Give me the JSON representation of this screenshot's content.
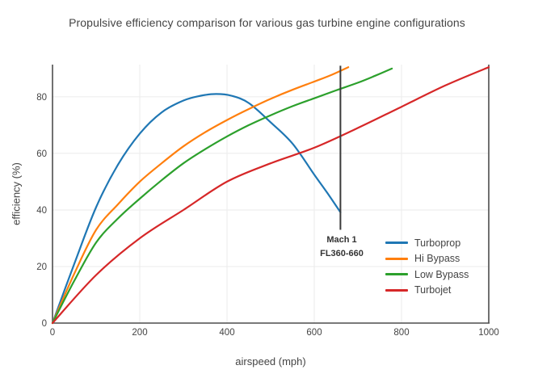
{
  "chart_data": {
    "type": "line",
    "title": "Propulsive efficiency comparison for various gas turbine engine configurations",
    "xlabel": "airspeed (mph)",
    "ylabel": "efficiency (%)",
    "xlim": [
      0,
      1000
    ],
    "ylim": [
      0,
      91.4
    ],
    "x_ticks": [
      0,
      200,
      400,
      600,
      800,
      1000
    ],
    "y_ticks": [
      0,
      20,
      40,
      60,
      80
    ],
    "grid": true,
    "legend_position": "inside-right",
    "style": {
      "grid_color": "#ebebeb",
      "axis_color": "#4d4d4d",
      "text_color": "#444444",
      "annotation_line_color": "#3a3a3a",
      "background": "#ffffff"
    },
    "series": [
      {
        "name": "Turboprop",
        "color": "#1f77b4",
        "x": [
          0,
          50,
          100,
          150,
          200,
          250,
          300,
          340,
          375,
          410,
          450,
          500,
          550,
          600,
          630,
          660
        ],
        "y": [
          0,
          21,
          41,
          56,
          67,
          74.5,
          78.7,
          80.4,
          81,
          80.4,
          77.8,
          71,
          63.5,
          52.5,
          46,
          39.2
        ]
      },
      {
        "name": "Hi Bypass",
        "color": "#ff7f0e",
        "x": [
          0,
          50,
          100,
          150,
          200,
          250,
          300,
          350,
          400,
          450,
          500,
          550,
          600,
          640,
          678
        ],
        "y": [
          0,
          17.5,
          33,
          42,
          50,
          56.5,
          62.5,
          67.5,
          71.8,
          75.7,
          79.3,
          82.5,
          85.4,
          87.8,
          90.5
        ]
      },
      {
        "name": "Low Bypass",
        "color": "#2ca02c",
        "x": [
          0,
          50,
          100,
          150,
          200,
          250,
          300,
          350,
          400,
          450,
          500,
          550,
          600,
          650,
          700,
          740,
          778
        ],
        "y": [
          0,
          15,
          28.5,
          37,
          44,
          50.5,
          56.5,
          61.5,
          66,
          70,
          73.5,
          76.7,
          79.5,
          82.3,
          85,
          87.5,
          90
        ]
      },
      {
        "name": "Turbojet",
        "color": "#d62728",
        "x": [
          0,
          100,
          200,
          300,
          400,
          500,
          600,
          700,
          800,
          900,
          1000
        ],
        "y": [
          0,
          17,
          30,
          40,
          50,
          56.5,
          62,
          69,
          76.5,
          84,
          90.5
        ]
      }
    ],
    "annotation": {
      "lines": [
        "Mach 1",
        "FL360-660"
      ],
      "x_mph": 660,
      "line_span_pct": [
        33,
        91
      ]
    }
  }
}
